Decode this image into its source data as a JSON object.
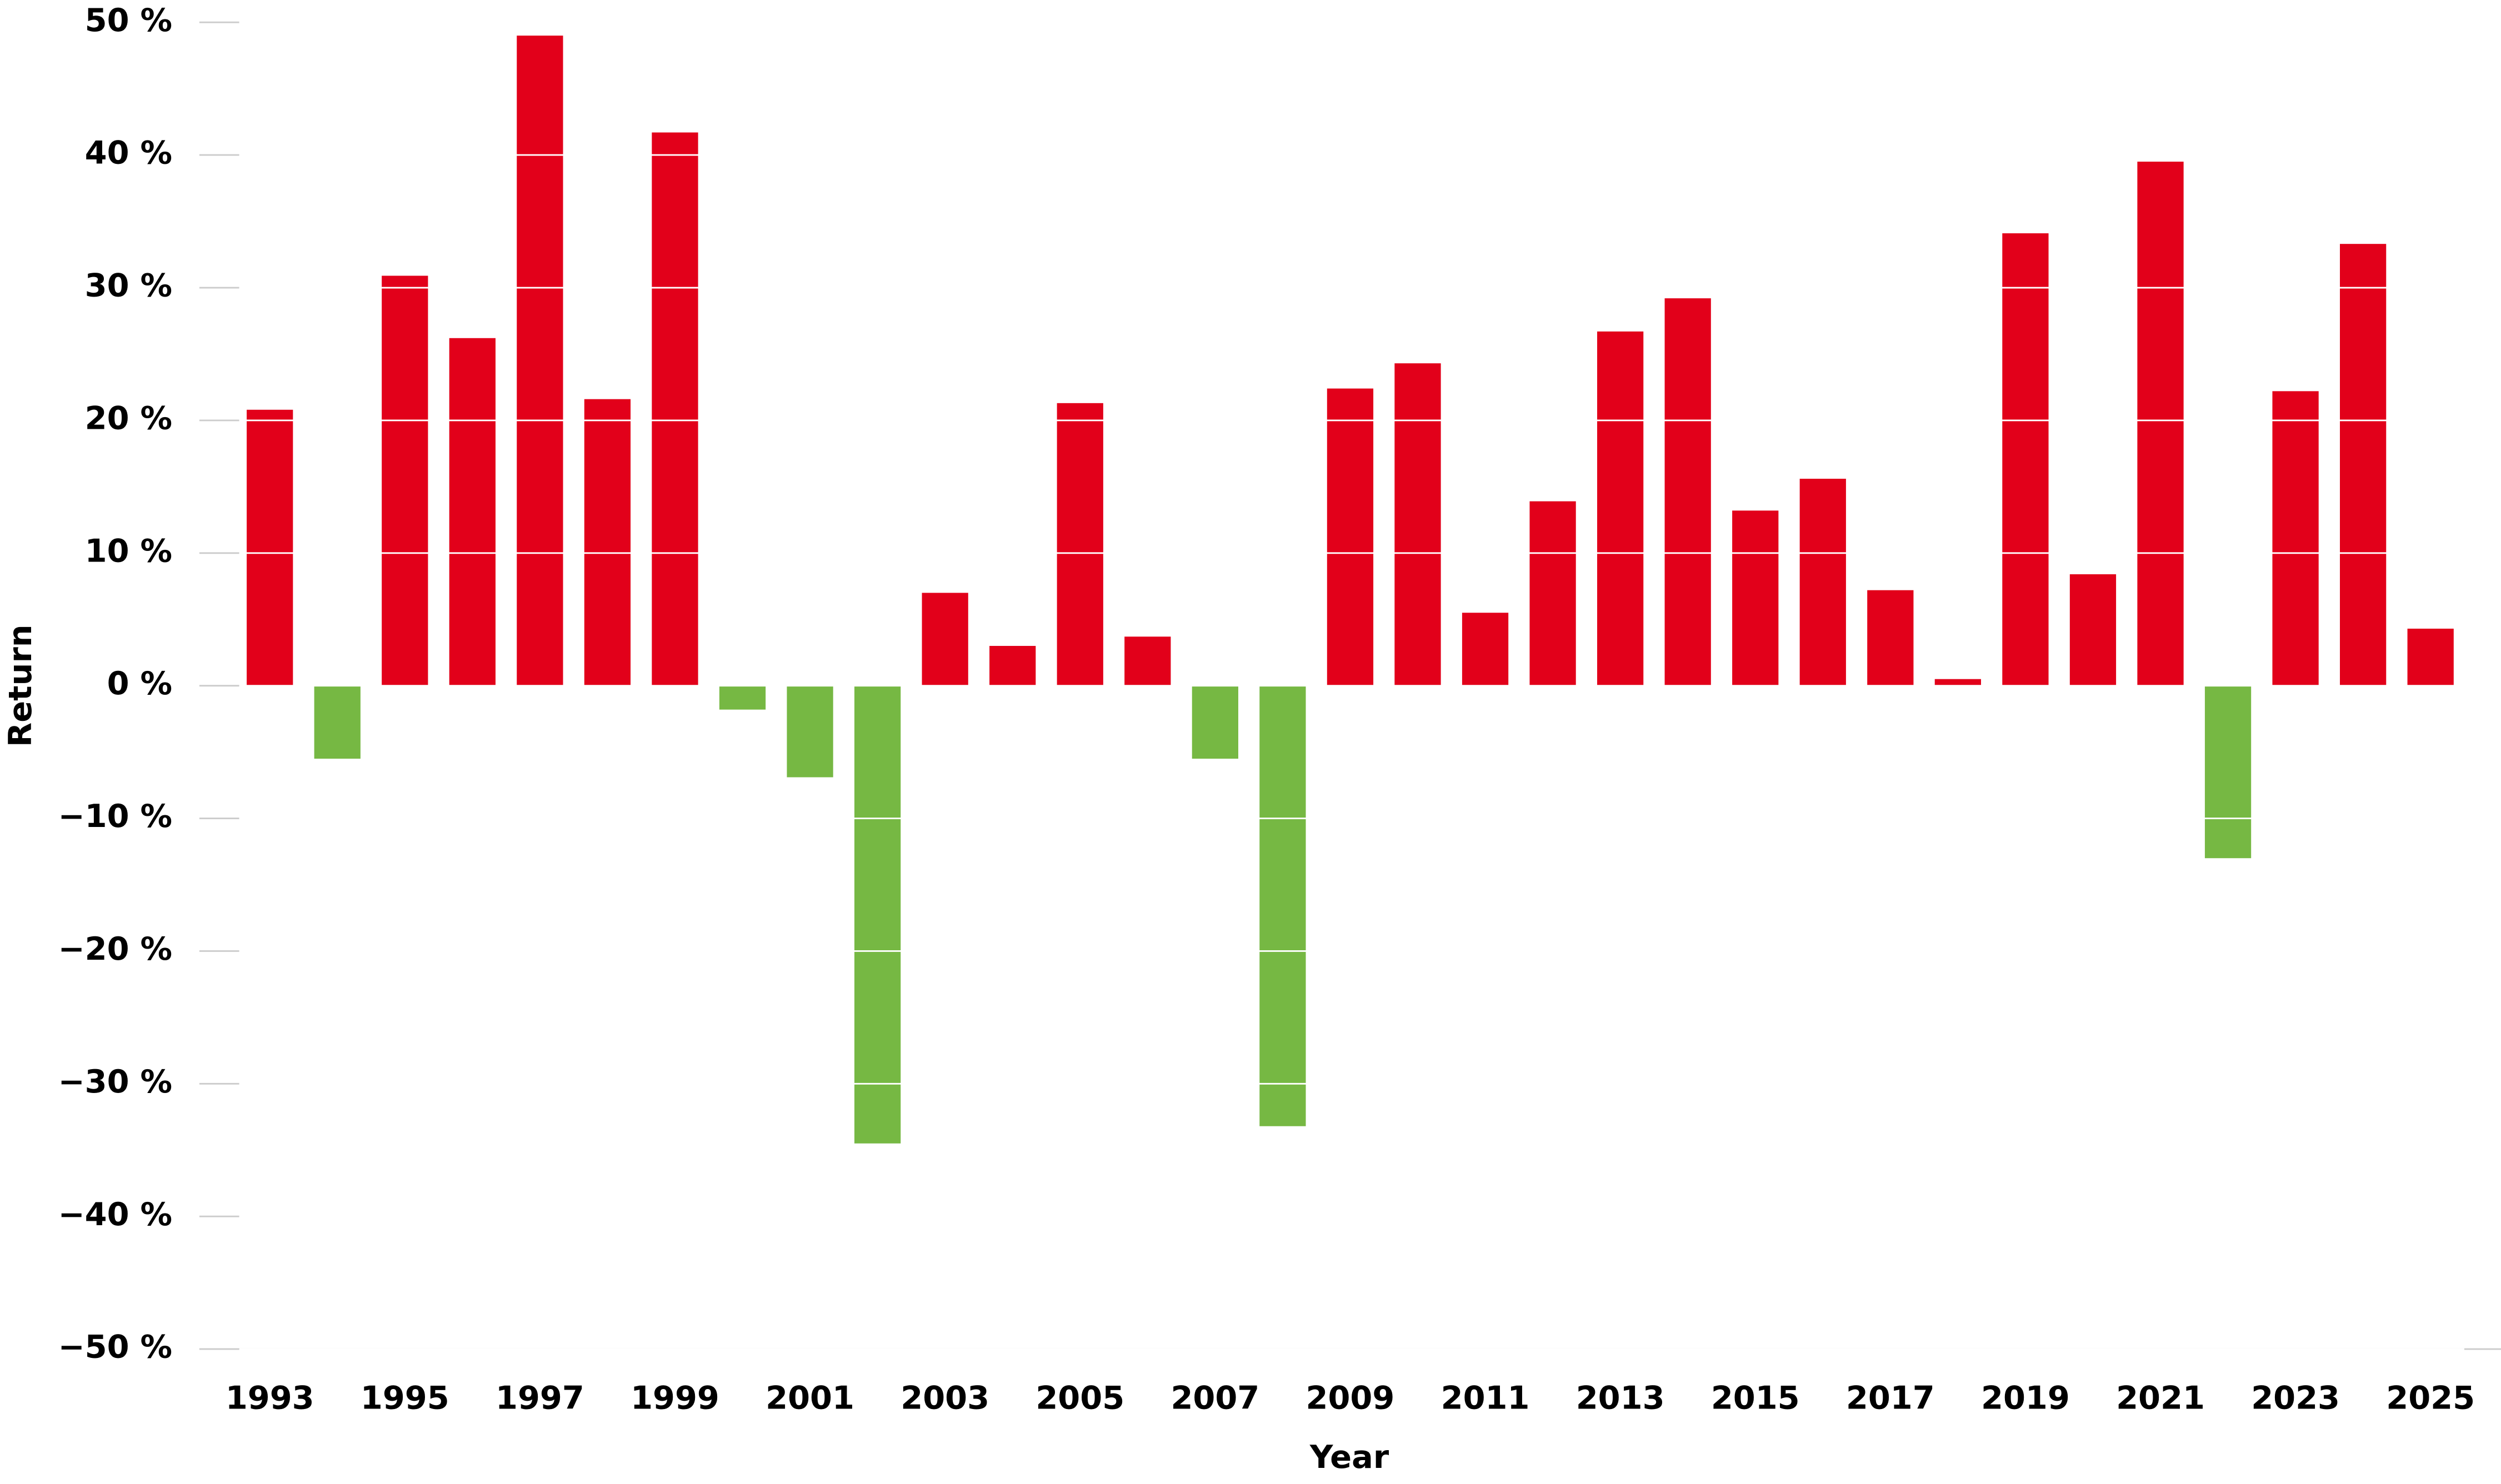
{
  "chart_data": {
    "type": "bar",
    "x_label": "Year",
    "y_label": "Return",
    "categories": [
      "1993",
      null,
      "1995",
      null,
      "1997",
      null,
      "1999",
      null,
      "2001",
      null,
      "2003",
      null,
      "2005",
      null,
      "2007",
      null,
      "2009",
      null,
      "2011",
      null,
      "2013",
      null,
      "2015",
      null,
      "2017",
      null,
      "2019",
      null,
      "2021",
      null,
      "2023",
      null,
      "2025"
    ],
    "values": [
      20.8,
      -5.5,
      30.9,
      26.2,
      49.0,
      21.6,
      41.7,
      -1.8,
      -6.9,
      -34.5,
      7.0,
      3.0,
      21.3,
      3.7,
      -5.5,
      -33.2,
      22.4,
      24.3,
      5.5,
      13.9,
      26.7,
      29.2,
      13.2,
      15.6,
      7.2,
      0.5,
      34.1,
      8.4,
      39.5,
      -13.0,
      22.2,
      33.3,
      4.3
    ],
    "positive_color": "#e2001a",
    "negative_color": "#76b843",
    "ylim": [
      -50,
      50
    ],
    "yticks": [
      {
        "value": -50,
        "label": "−50 %"
      },
      {
        "value": -40,
        "label": "−40 %"
      },
      {
        "value": -30,
        "label": "−30 %"
      },
      {
        "value": -20,
        "label": "−20 %"
      },
      {
        "value": -10,
        "label": "−10 %"
      },
      {
        "value": 0,
        "label": "0 %"
      },
      {
        "value": 10,
        "label": "10 %"
      },
      {
        "value": 20,
        "label": "20 %"
      },
      {
        "value": 30,
        "label": "30 %"
      },
      {
        "value": 40,
        "label": "40 %"
      },
      {
        "value": 50,
        "label": "50 %"
      }
    ],
    "grid": true
  }
}
